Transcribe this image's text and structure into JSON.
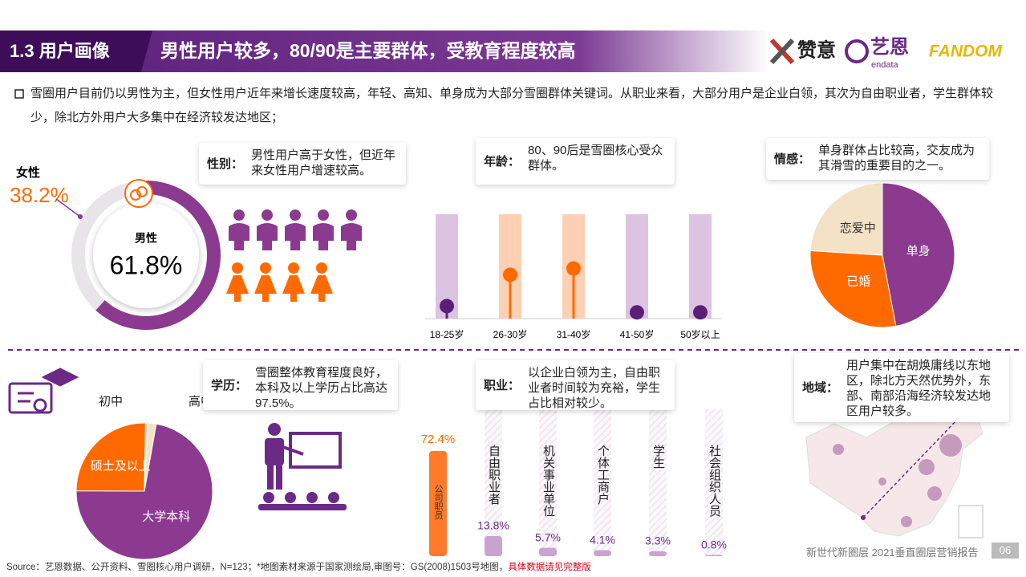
{
  "header": {
    "section": "1.3 用户画像",
    "title": "男性用户较多，80/90是主要群体，受教育程度较高",
    "logos": [
      "赞意",
      "艺恩",
      "endata",
      "FANDOM"
    ]
  },
  "intro": "雪圈用户目前仍以男性为主，但女性用户近年来增长速度较高，年轻、高知、单身成为大部分雪圈群体关键词。从职业来看，大部分用户是企业白领，其次为自由职业者，学生群体较少，除北方外用户大多集中在经济较发达地区；",
  "chart_data": [
    {
      "type": "donut",
      "label": "性别：",
      "description": "男性用户高于女性，但近年来女性用户增速较高。",
      "categories": [
        "男性",
        "女性"
      ],
      "values": [
        61.8,
        38.2
      ],
      "value_labels": [
        "61.8%",
        "38.2%"
      ],
      "colors": [
        "#8b3a8f",
        "#e9e4ea"
      ]
    },
    {
      "type": "lollipop",
      "label": "年龄：",
      "description": "80、90后是雪圈核心受众群体。",
      "categories": [
        "18-25岁",
        "26-30岁",
        "31-40岁",
        "41-50岁",
        "50岁以上"
      ],
      "values": [
        6,
        21,
        24,
        3,
        3
      ],
      "ylim": [
        0,
        50
      ],
      "band_colors": [
        "#dcc3e2",
        "#fdd0b3",
        "#fdd0b3",
        "#dcc3e2",
        "#dcc3e2"
      ],
      "colors": [
        "#5b1f78",
        "#ff6a00",
        "#ff6a00",
        "#5b1f78",
        "#5b1f78"
      ]
    },
    {
      "type": "pie",
      "label": "情感：",
      "description": "单身群体占比较高，交友成为其滑雪的重要目的之一。",
      "categories": [
        "单身",
        "已婚",
        "恋爱中"
      ],
      "values": [
        47,
        29,
        24
      ],
      "colors": [
        "#8b3a8f",
        "#ff6a00",
        "#f4e2c6"
      ]
    },
    {
      "type": "pie",
      "label": "学历：",
      "description": "雪圈整体教育程度良好，本科及以上学历占比高达97.5%。",
      "categories": [
        "大学本科",
        "硕士及以上",
        "初中",
        "高中"
      ],
      "values": [
        72.3,
        25.2,
        0.5,
        2.0
      ],
      "colors": [
        "#8b3a8f",
        "#ff6a00",
        "#cfcfcf",
        "#f4e2c6"
      ]
    },
    {
      "type": "bar",
      "label": "职业：",
      "description": "以企业白领为主，自由职业者时间较为充裕，学生占比相对较少。",
      "categories": [
        "公司职员",
        "自由职业者",
        "机关事业单位",
        "个体工商户",
        "学生",
        "社会组织人员"
      ],
      "values": [
        72.4,
        13.8,
        5.7,
        4.1,
        3.3,
        0.8
      ],
      "value_labels": [
        "72.4%",
        "13.8%",
        "5.7%",
        "4.1%",
        "3.3%",
        "0.8%"
      ],
      "colors": [
        "#ff7a2a",
        "#c9a3cf",
        "#c9a3cf",
        "#c9a3cf",
        "#c9a3cf",
        "#c9a3cf"
      ]
    }
  ],
  "region": {
    "label": "地域：",
    "description": "用户集中在胡焕庸线以东地区，除北方天然优势外，东部、南部沿海经济较发达地区用户较多。"
  },
  "footer": {
    "source": "Source：艺恩数据、公开资料、雪圈核心用户调研，N=123；*地图素材来源于国家测绘局,审图号：GS(2008)1503号地图，",
    "note": "具体数据请见完整版",
    "report": "新世代新圈层 2021垂直圈层营销报告",
    "page": "06"
  }
}
